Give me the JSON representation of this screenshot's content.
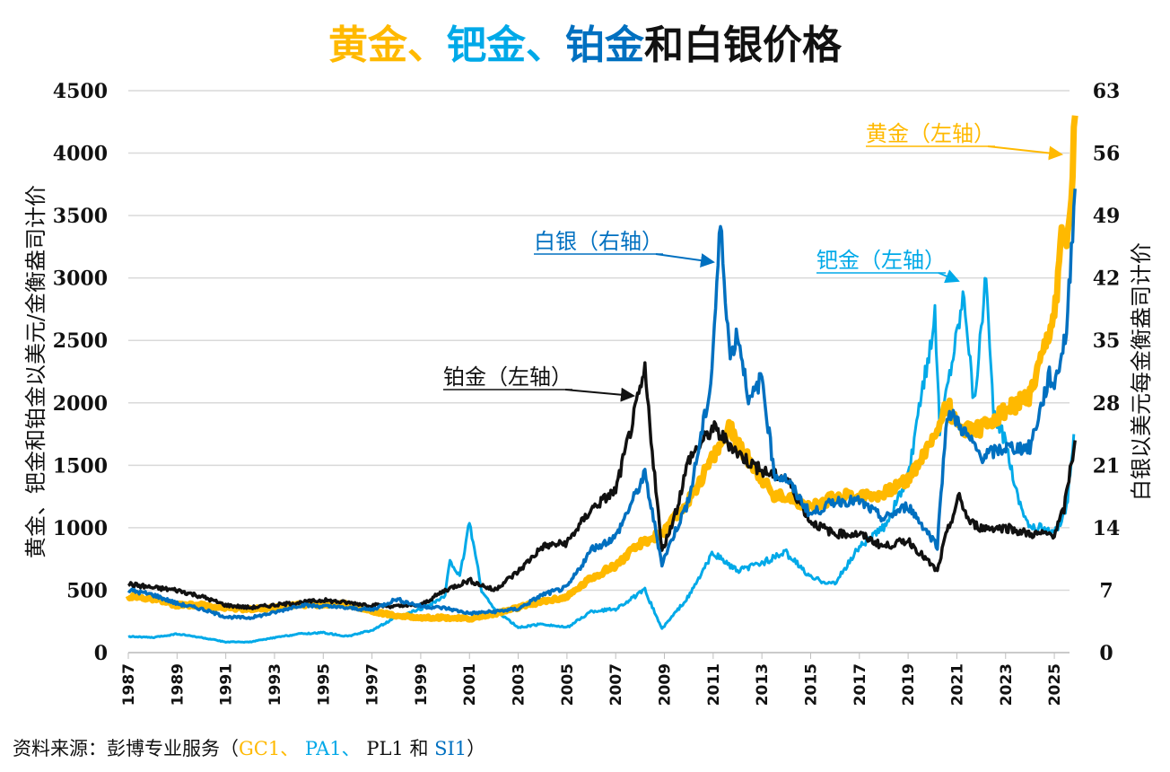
{
  "title": {
    "parts": [
      {
        "text": "黄金、",
        "color": "#FFB900"
      },
      {
        "text": "钯金、",
        "color": "#00A9E8"
      },
      {
        "text": "铂金",
        "color": "#0070C0"
      },
      {
        "text": "和白银价格",
        "color": "#111111"
      }
    ]
  },
  "source": {
    "prefix": "资料来源：彭博专业服务（",
    "codes": [
      {
        "text": "GC1",
        "color": "#FFB900"
      },
      {
        "text": "、 ",
        "color": "#FFB900"
      },
      {
        "text": "PA1",
        "color": "#00A9E8"
      },
      {
        "text": "、 ",
        "color": "#00A9E8"
      },
      {
        "text": "PL1",
        "color": "#111111"
      },
      {
        "text": " 和 ",
        "color": "#111111"
      },
      {
        "text": "SI1",
        "color": "#0070C0"
      }
    ],
    "suffix": "）"
  },
  "chart_data": {
    "type": "line",
    "ylabel_left": "黄金、钯金和铂金以美元/金衡盎司计价",
    "ylabel_right": "白银以美元每金衡盎司计价",
    "xlim": [
      1987,
      2025.9
    ],
    "ylim_left": [
      0,
      4500
    ],
    "ylim_right": [
      0,
      63
    ],
    "yticks_left": [
      "0",
      "500",
      "1000",
      "1500",
      "2000",
      "2500",
      "3000",
      "3500",
      "4000",
      "4500"
    ],
    "yticks_right": [
      "0",
      "7",
      "14",
      "21",
      "28",
      "35",
      "42",
      "49",
      "56",
      "63"
    ],
    "xticks": [
      "1987",
      "1989",
      "1991",
      "1993",
      "1995",
      "1997",
      "1999",
      "2001",
      "2003",
      "2005",
      "2007",
      "2009",
      "2011",
      "2013",
      "2015",
      "2017",
      "2019",
      "2021",
      "2023",
      "2025"
    ],
    "grid": true,
    "series": [
      {
        "key": "palladium",
        "axis": "left",
        "color": "#00A9E8",
        "annotation": "钯金（左轴）",
        "x": [
          1987,
          1988,
          1989,
          1990,
          1991,
          1992,
          1993,
          1994,
          1995,
          1996,
          1997,
          1998,
          1999,
          2000,
          2000.2,
          2000.6,
          2001,
          2001.5,
          2002,
          2003,
          2004,
          2005,
          2006,
          2007,
          2008.2,
          2008.9,
          2010,
          2011,
          2012,
          2013,
          2014,
          2015,
          2016,
          2017,
          2018,
          2019,
          2020.1,
          2020.3,
          2021.3,
          2021.7,
          2022.2,
          2022.5,
          2023,
          2023.5,
          2024,
          2024.5,
          2025,
          2025.5,
          2025.8
        ],
        "y": [
          130,
          120,
          150,
          120,
          85,
          85,
          120,
          150,
          160,
          130,
          180,
          280,
          350,
          450,
          750,
          600,
          1050,
          500,
          350,
          200,
          230,
          200,
          330,
          350,
          500,
          190,
          450,
          800,
          650,
          720,
          800,
          600,
          550,
          850,
          1000,
          1400,
          2700,
          1800,
          2900,
          2000,
          3000,
          1900,
          1700,
          1250,
          1000,
          1000,
          950,
          1150,
          1750
        ]
      },
      {
        "key": "gold",
        "axis": "left",
        "color": "#FFB900",
        "annotation": "黄金（左轴）",
        "x": [
          1987,
          1988,
          1989,
          1990,
          1991,
          1992,
          1993,
          1994,
          1995,
          1996,
          1997,
          1998,
          1999,
          2000,
          2001,
          2002,
          2003,
          2004,
          2005,
          2006,
          2007,
          2008,
          2009,
          2010,
          2011,
          2011.7,
          2012,
          2013,
          2013.5,
          2014,
          2015,
          2016,
          2017,
          2018,
          2019,
          2020,
          2020.6,
          2021,
          2022,
          2023,
          2024,
          2024.5,
          2025,
          2025.3,
          2025.6,
          2025.85
        ],
        "y": [
          450,
          430,
          380,
          380,
          360,
          345,
          360,
          385,
          385,
          390,
          330,
          295,
          280,
          280,
          270,
          310,
          360,
          410,
          445,
          600,
          700,
          870,
          970,
          1220,
          1570,
          1800,
          1670,
          1400,
          1250,
          1260,
          1160,
          1250,
          1260,
          1270,
          1390,
          1700,
          2000,
          1800,
          1800,
          1940,
          2050,
          2350,
          2700,
          3300,
          3400,
          4300
        ]
      },
      {
        "key": "platinum",
        "axis": "left",
        "color": "#111111",
        "annotation": "铂金（左轴）",
        "x": [
          1987,
          1988,
          1989,
          1990,
          1991,
          1992,
          1993,
          1994,
          1995,
          1996,
          1997,
          1998,
          1999,
          2000,
          2001,
          2002,
          2003,
          2004,
          2005,
          2006,
          2007,
          2008.2,
          2008.9,
          2009.5,
          2010,
          2011,
          2011.8,
          2012,
          2013,
          2014,
          2015,
          2016,
          2017,
          2018,
          2019,
          2020.2,
          2020.5,
          2021.1,
          2021.5,
          2022,
          2023,
          2024,
          2025,
          2025.4,
          2025.6,
          2025.85
        ],
        "y": [
          550,
          520,
          500,
          450,
          380,
          360,
          380,
          400,
          420,
          400,
          380,
          370,
          380,
          500,
          580,
          500,
          650,
          850,
          880,
          1150,
          1300,
          2250,
          800,
          1150,
          1550,
          1800,
          1650,
          1600,
          1450,
          1400,
          1050,
          950,
          950,
          850,
          900,
          650,
          900,
          1250,
          1050,
          1000,
          1000,
          950,
          950,
          1150,
          1400,
          1700
        ]
      },
      {
        "key": "silver",
        "axis": "right",
        "color": "#0070C0",
        "annotation": "白银（右轴）",
        "x": [
          1987,
          1988,
          1989,
          1990,
          1991,
          1992,
          1993,
          1994,
          1995,
          1996,
          1997,
          1998,
          1999,
          2000,
          2001,
          2002,
          2003,
          2004,
          2005,
          2006,
          2007,
          2008.2,
          2008.9,
          2009.5,
          2010,
          2010.9,
          2011.3,
          2011.7,
          2012,
          2012.5,
          2013,
          2013.5,
          2014,
          2015,
          2016,
          2017,
          2018,
          2019,
          2020.2,
          2020.6,
          2021,
          2022,
          2023,
          2024,
          2024.8,
          2025,
          2025.5,
          2025.85
        ],
        "y": [
          7,
          6.5,
          5.5,
          4.9,
          4,
          3.9,
          4.5,
          5.3,
          5.2,
          5,
          4.8,
          6,
          5.2,
          5,
          4.4,
          4.6,
          4.9,
          6.5,
          7.3,
          11.5,
          13,
          20,
          10,
          14,
          17,
          30,
          48,
          33,
          36,
          28,
          31,
          20,
          19.5,
          15.5,
          17,
          17,
          15,
          16.5,
          12,
          27,
          26,
          22,
          23,
          23,
          31,
          30,
          36,
          52
        ]
      }
    ]
  }
}
